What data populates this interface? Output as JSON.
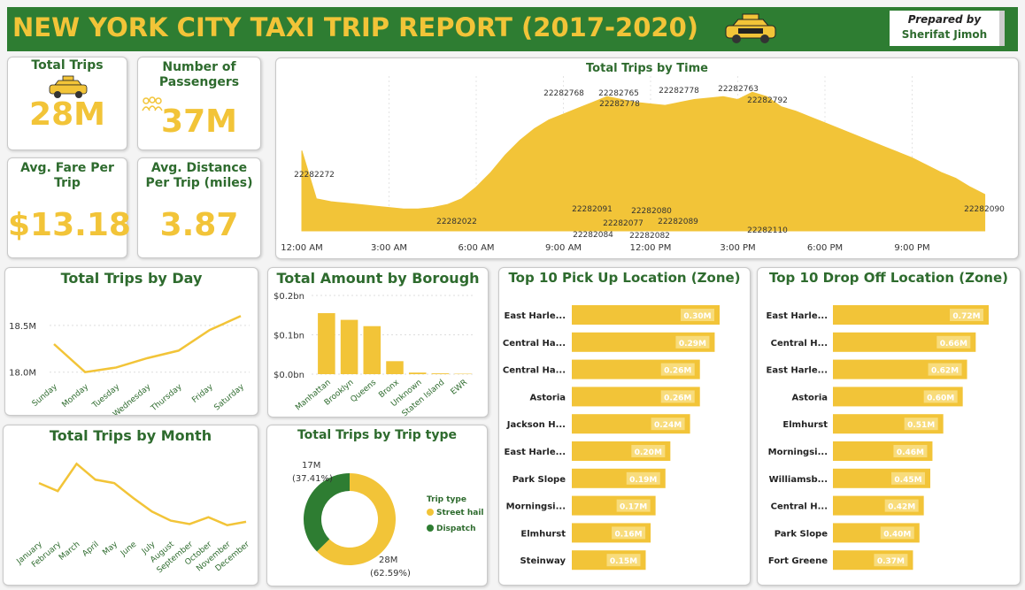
{
  "header": {
    "title": "NEW YORK CITY TAXI TRIP REPORT (2017-2020)",
    "prepared_by": "Prepared by",
    "author": "Sherifat Jimoh"
  },
  "kpis": [
    {
      "label": "Total Trips",
      "value": "28M"
    },
    {
      "label": "Number of Passengers",
      "value": "37M"
    },
    {
      "label": "Avg. Fare Per Trip",
      "value": "$13.18"
    },
    {
      "label": "Avg. Distance Per Trip (miles)",
      "value": "3.87"
    }
  ],
  "chart_data": [
    {
      "type": "area",
      "title": "Total Trips by Time",
      "color": "#f2c438",
      "categories": [
        "12:00 AM",
        null,
        null,
        null,
        null,
        null,
        "3:00 AM",
        null,
        null,
        null,
        null,
        null,
        "6:00 AM",
        null,
        null,
        null,
        null,
        null,
        "9:00 AM",
        null,
        null,
        null,
        null,
        null,
        "12:00 PM",
        null,
        null,
        null,
        null,
        null,
        "3:00 PM",
        null,
        null,
        null,
        null,
        null,
        "6:00 PM",
        null,
        null,
        null,
        null,
        null,
        "9:00 PM",
        null,
        null,
        null,
        null,
        null
      ],
      "values": [
        55,
        22,
        20,
        19,
        18,
        17,
        16,
        15,
        15,
        16,
        18,
        22,
        30,
        40,
        52,
        62,
        70,
        76,
        80,
        84,
        88,
        92,
        90,
        88,
        87,
        86,
        88,
        90,
        91,
        92,
        90,
        95,
        92,
        85,
        82,
        78,
        74,
        70,
        66,
        62,
        58,
        54,
        50,
        45,
        40,
        36,
        30,
        25
      ],
      "ylim": [
        0,
        100
      ],
      "annotations": [
        "22282272",
        "22282768",
        "22282765",
        "22282778",
        "22282778",
        "22282763",
        "22282792",
        "22282022",
        "22282091",
        "22282084",
        "22282077",
        "22282080",
        "22282082",
        "22282089",
        "22282110",
        "22282090"
      ]
    },
    {
      "type": "line",
      "title": "Total Trips by Day",
      "color": "#f2c438",
      "categories": [
        "Sunday",
        "Monday",
        "Tuesday",
        "Wednesday",
        "Thursday",
        "Friday",
        "Saturday"
      ],
      "values": [
        18.3,
        18.0,
        18.05,
        18.15,
        18.23,
        18.45,
        18.6
      ],
      "ylim": [
        17.95,
        18.65
      ],
      "yticks": [
        {
          "value": 18.0,
          "label": "18.0M"
        },
        {
          "value": 18.5,
          "label": "18.5M"
        }
      ],
      "grid": true
    },
    {
      "type": "bar",
      "title": "Total Amount by Borough",
      "color": "#f2c438",
      "categories": [
        "Manhattan",
        "Brooklyn",
        "Queens",
        "Bronx",
        "Unknown",
        "Staten Island",
        "EWR"
      ],
      "values": [
        0.155,
        0.138,
        0.122,
        0.033,
        0.004,
        0.002,
        0.001
      ],
      "ylim": [
        0,
        0.2
      ],
      "yticks": [
        {
          "value": 0.0,
          "label": "$0.0bn"
        },
        {
          "value": 0.1,
          "label": "$0.1bn"
        },
        {
          "value": 0.2,
          "label": "$0.2bn"
        }
      ],
      "grid": true
    },
    {
      "type": "line",
      "title": "Total Trips by Month",
      "color": "#f2c438",
      "categories": [
        "January",
        "February",
        "March",
        "April",
        "May",
        "June",
        "July",
        "August",
        "September",
        "October",
        "November",
        "December"
      ],
      "values": [
        2.45,
        2.38,
        2.62,
        2.48,
        2.45,
        2.32,
        2.2,
        2.12,
        2.09,
        2.15,
        2.08,
        2.11
      ],
      "ylim": [
        2.0,
        2.7
      ],
      "grid": false
    },
    {
      "type": "donut",
      "title": "Total Trips by Trip type",
      "legend_title": "Trip type",
      "categories": [
        "Street hail",
        "Dispatch"
      ],
      "colors": [
        "#f2c438",
        "#2e7d32"
      ],
      "values": [
        62.59,
        37.41
      ],
      "value_labels": [
        "(62.59%)",
        "(37.41%)"
      ],
      "counts": [
        28,
        17
      ],
      "count_labels": [
        "28M",
        "17M"
      ]
    },
    {
      "type": "hbar",
      "title": "Top 10 Pick Up Location (Zone)",
      "color": "#f2c438",
      "categories": [
        "East Harle...",
        "Central Ha...",
        "Central Ha...",
        "Astoria",
        "Jackson H...",
        "East Harle...",
        "Park Slope",
        "Morningsi...",
        "Elmhurst",
        "Steinway"
      ],
      "values": [
        0.3,
        0.29,
        0.26,
        0.26,
        0.24,
        0.2,
        0.19,
        0.17,
        0.16,
        0.15
      ],
      "value_labels": [
        "0.30M",
        "0.29M",
        "0.26M",
        "0.26M",
        "0.24M",
        "0.20M",
        "0.19M",
        "0.17M",
        "0.16M",
        "0.15M"
      ],
      "xlim": [
        0,
        0.3
      ]
    },
    {
      "type": "hbar",
      "title": "Top 10 Drop Off Location (Zone)",
      "color": "#f2c438",
      "categories": [
        "East Harle...",
        "Central H...",
        "East Harle...",
        "Astoria",
        "Elmhurst",
        "Morningsi...",
        "Williamsb...",
        "Central H...",
        "Park Slope",
        "Fort Greene"
      ],
      "values": [
        0.72,
        0.66,
        0.62,
        0.6,
        0.51,
        0.46,
        0.45,
        0.42,
        0.4,
        0.37
      ],
      "value_labels": [
        "0.72M",
        "0.66M",
        "0.62M",
        "0.60M",
        "0.51M",
        "0.46M",
        "0.45M",
        "0.42M",
        "0.40M",
        "0.37M"
      ],
      "xlim": [
        0,
        0.72
      ]
    }
  ]
}
